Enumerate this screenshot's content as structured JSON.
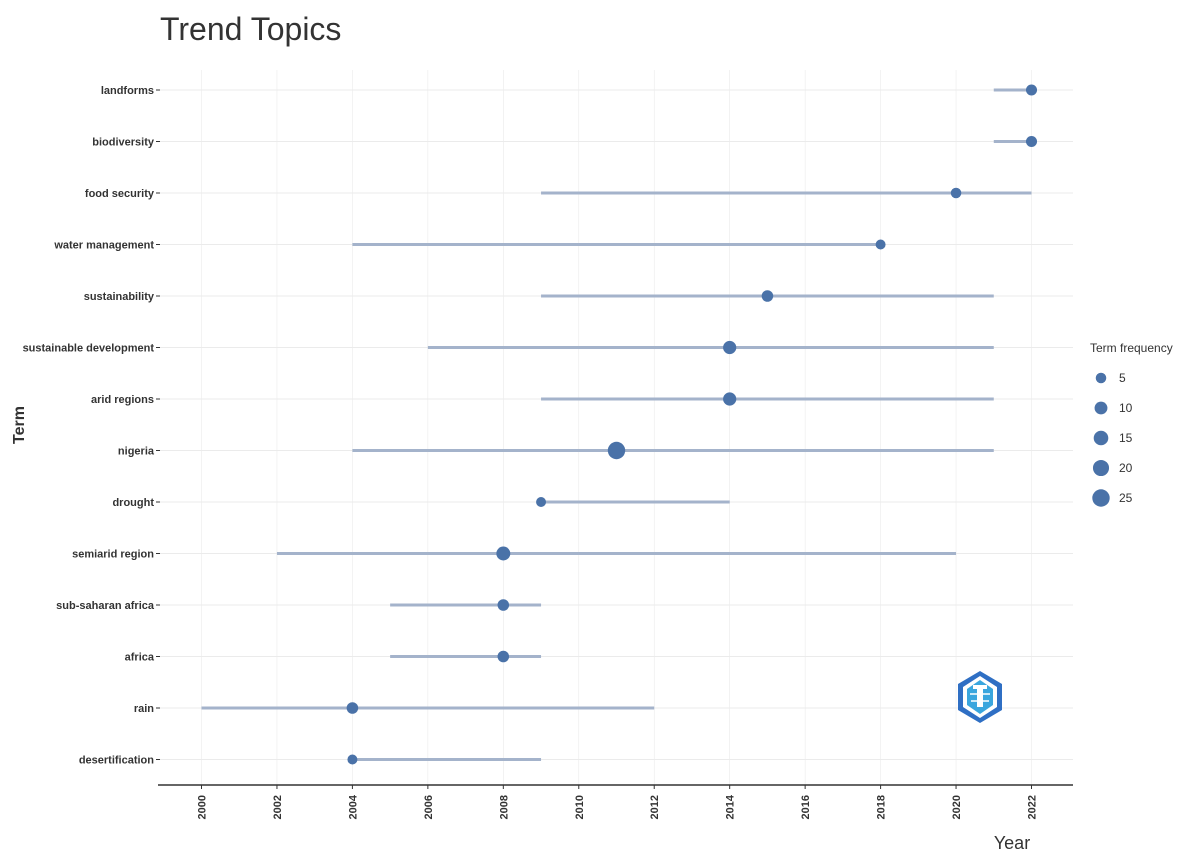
{
  "chart_data": {
    "type": "scatter",
    "title": "Trend Topics",
    "xlabel": "Year",
    "ylabel": "Term",
    "xlim": [
      1999,
      2023
    ],
    "x_ticks": [
      "2000",
      "2002",
      "2004",
      "2006",
      "2008",
      "2010",
      "2012",
      "2014",
      "2016",
      "2018",
      "2020",
      "2022"
    ],
    "grid": true,
    "legend_position": "right",
    "legend": {
      "title": "Term frequency",
      "items": [
        {
          "label": "5",
          "value": 5
        },
        {
          "label": "10",
          "value": 10
        },
        {
          "label": "15",
          "value": 15
        },
        {
          "label": "20",
          "value": 20
        },
        {
          "label": "25",
          "value": 25
        }
      ]
    },
    "colors": {
      "point": "#4a72a8",
      "range": "#a4b3cb",
      "grid": "#ebebeb",
      "axis": "#333333"
    },
    "terms": [
      {
        "term": "landforms",
        "year_q1": 2021,
        "year_median": 2022,
        "year_q3": 2022,
        "freq": 6
      },
      {
        "term": "biodiversity",
        "year_q1": 2021,
        "year_median": 2022,
        "year_q3": 2022,
        "freq": 6
      },
      {
        "term": "food security",
        "year_q1": 2009,
        "year_median": 2020,
        "year_q3": 2022,
        "freq": 5
      },
      {
        "term": "water management",
        "year_q1": 2004,
        "year_median": 2018,
        "year_q3": 2018,
        "freq": 4
      },
      {
        "term": "sustainability",
        "year_q1": 2009,
        "year_median": 2015,
        "year_q3": 2021,
        "freq": 7
      },
      {
        "term": "sustainable development",
        "year_q1": 2006,
        "year_median": 2014,
        "year_q3": 2021,
        "freq": 11
      },
      {
        "term": "arid regions",
        "year_q1": 2009,
        "year_median": 2014,
        "year_q3": 2021,
        "freq": 11
      },
      {
        "term": "nigeria",
        "year_q1": 2004,
        "year_median": 2011,
        "year_q3": 2021,
        "freq": 25
      },
      {
        "term": "drought",
        "year_q1": 2009,
        "year_median": 2009,
        "year_q3": 2014,
        "freq": 4
      },
      {
        "term": "semiarid region",
        "year_q1": 2002,
        "year_median": 2008,
        "year_q3": 2020,
        "freq": 13
      },
      {
        "term": "sub-saharan africa",
        "year_q1": 2005,
        "year_median": 2008,
        "year_q3": 2009,
        "freq": 7
      },
      {
        "term": "africa",
        "year_q1": 2005,
        "year_median": 2008,
        "year_q3": 2009,
        "freq": 7
      },
      {
        "term": "rain",
        "year_q1": 2000,
        "year_median": 2004,
        "year_q3": 2012,
        "freq": 7
      },
      {
        "term": "desertification",
        "year_q1": 2004,
        "year_median": 2004,
        "year_q3": 2009,
        "freq": 4
      }
    ]
  }
}
